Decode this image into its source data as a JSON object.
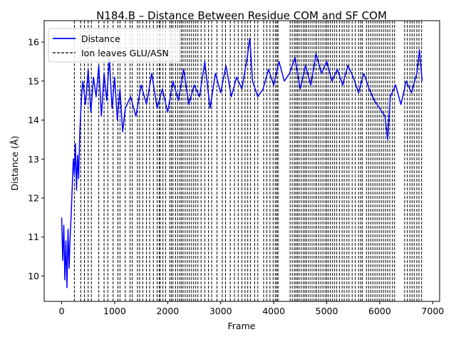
{
  "chart_data": {
    "type": "line",
    "title": "N184.B – Distance Between Residue COM and SF COM",
    "xlabel": "Frame",
    "ylabel": "Distance (Å)",
    "xlim": [
      -330,
      7130
    ],
    "ylim": [
      9.35,
      16.55
    ],
    "xticks": [
      0,
      1000,
      2000,
      3000,
      4000,
      5000,
      6000,
      7000
    ],
    "yticks": [
      10,
      11,
      12,
      13,
      14,
      15,
      16
    ],
    "grid": false,
    "legend_position": "top-left",
    "series": [
      {
        "name": "Distance",
        "color": "#0000ff",
        "x": [
          0,
          20,
          40,
          60,
          80,
          100,
          120,
          140,
          160,
          180,
          200,
          220,
          240,
          260,
          280,
          300,
          320,
          340,
          360,
          380,
          400,
          450,
          500,
          550,
          600,
          650,
          700,
          750,
          800,
          850,
          900,
          950,
          1000,
          1050,
          1100,
          1150,
          1200,
          1300,
          1400,
          1500,
          1600,
          1700,
          1800,
          1900,
          2000,
          2100,
          2200,
          2300,
          2400,
          2500,
          2600,
          2700,
          2800,
          2900,
          3000,
          3100,
          3200,
          3300,
          3400,
          3500,
          3550,
          3600,
          3700,
          3800,
          3900,
          4000,
          4100,
          4200,
          4300,
          4400,
          4500,
          4600,
          4700,
          4800,
          4900,
          5000,
          5100,
          5200,
          5300,
          5400,
          5500,
          5600,
          5700,
          5800,
          5900,
          6000,
          6100,
          6150,
          6200,
          6300,
          6400,
          6500,
          6600,
          6700,
          6750,
          6800
        ],
        "y": [
          11.5,
          10.4,
          11.3,
          9.9,
          10.9,
          9.7,
          11.2,
          10.2,
          11.0,
          11.6,
          12.3,
          13.0,
          12.6,
          13.4,
          12.2,
          13.1,
          12.5,
          13.6,
          14.2,
          14.7,
          15.0,
          14.4,
          15.3,
          14.2,
          15.1,
          14.6,
          15.4,
          14.1,
          15.2,
          14.5,
          15.6,
          14.3,
          15.1,
          14.0,
          14.8,
          13.7,
          14.3,
          14.6,
          14.1,
          14.9,
          14.4,
          15.2,
          14.3,
          14.8,
          14.2,
          15.0,
          14.5,
          15.3,
          14.4,
          14.9,
          14.6,
          15.5,
          14.3,
          15.2,
          14.7,
          15.4,
          14.6,
          15.1,
          14.8,
          15.6,
          16.1,
          15.0,
          14.6,
          14.8,
          15.3,
          14.9,
          15.5,
          15.0,
          15.2,
          15.6,
          14.8,
          15.4,
          14.9,
          15.7,
          15.2,
          15.5,
          15.0,
          15.3,
          14.9,
          15.4,
          15.1,
          14.7,
          15.2,
          14.8,
          14.5,
          14.3,
          14.1,
          13.5,
          14.6,
          14.9,
          14.4,
          15.0,
          14.7,
          15.2,
          15.8,
          15.0
        ]
      },
      {
        "name": "Ion leaves GLU/ASN",
        "color": "#000000",
        "x": [
          240,
          360,
          430,
          500,
          560,
          700,
          800,
          870,
          970,
          1060,
          1100,
          1200,
          1290,
          1330,
          1430,
          1470,
          1530,
          1600,
          1660,
          1730,
          1800,
          1840,
          1860,
          1910,
          1960,
          2040,
          2070,
          2100,
          2150,
          2190,
          2230,
          2260,
          2290,
          2330,
          2370,
          2410,
          2450,
          2490,
          2530,
          2570,
          2630,
          2700,
          2770,
          2830,
          2930,
          3030,
          3090,
          3180,
          3260,
          3330,
          3400,
          3460,
          3510,
          3560,
          3640,
          3700,
          3810,
          3870,
          3930,
          3990,
          4030,
          4060,
          4080,
          4310,
          4350,
          4390,
          4420,
          4450,
          4480,
          4520,
          4560,
          4590,
          4620,
          4660,
          4700,
          4740,
          4780,
          4810,
          4850,
          4890,
          4930,
          4970,
          5000,
          5030,
          5070,
          5110,
          5150,
          5190,
          5240,
          5290,
          5330,
          5380,
          5420,
          5480,
          5540,
          5600,
          5640,
          5670,
          5750,
          5790,
          5830,
          5870,
          5910,
          5950,
          5990,
          6030,
          6070,
          6110,
          6150,
          6190,
          6240,
          6280,
          6470,
          6520,
          6570,
          6610,
          6650,
          6700,
          6740,
          6790
        ]
      }
    ]
  }
}
